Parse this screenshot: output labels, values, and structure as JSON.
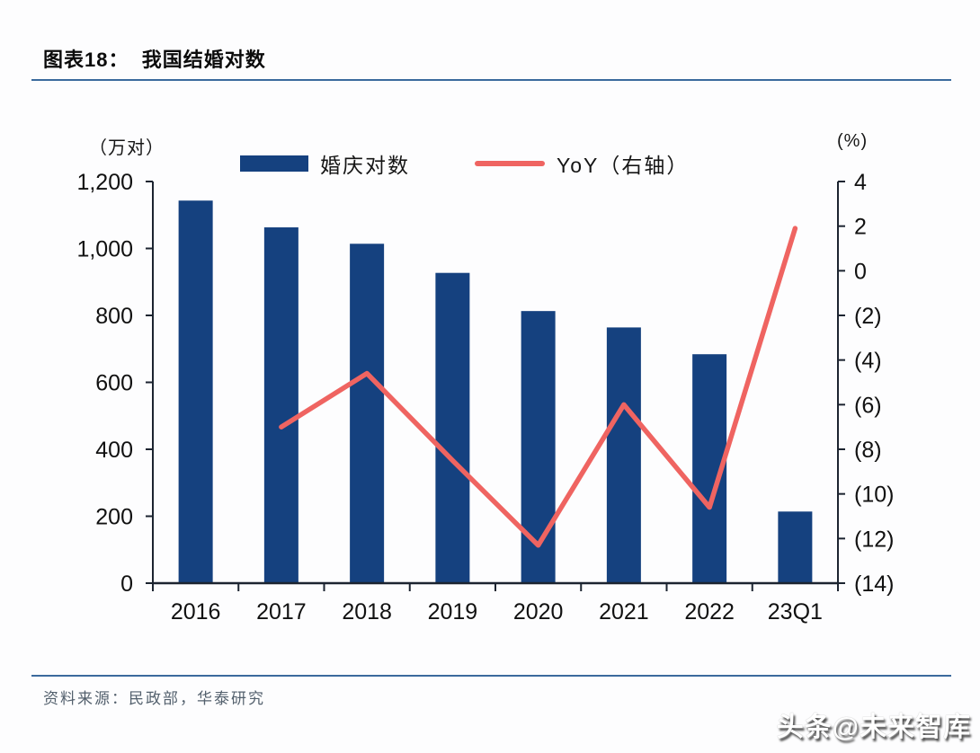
{
  "header": {
    "title": "图表18：  我国结婚对数"
  },
  "chart_data": {
    "type": "bar",
    "combo": "bar+line",
    "title": "我国结婚对数",
    "categories": [
      "2016",
      "2017",
      "2018",
      "2019",
      "2020",
      "2021",
      "2022",
      "23Q1"
    ],
    "series": [
      {
        "name": "婚庆对数",
        "type": "bar",
        "axis": "left",
        "color": "#15417f",
        "values": [
          1143,
          1063,
          1014,
          927,
          813,
          764,
          684,
          214
        ]
      },
      {
        "name": "YoY（右轴）",
        "type": "line",
        "axis": "right",
        "color": "#ef6461",
        "values": [
          null,
          -7.0,
          -4.6,
          -8.5,
          -12.3,
          -6.0,
          -10.6,
          1.9
        ]
      }
    ],
    "left_axis": {
      "unit": "（万对）",
      "min": 0,
      "max": 1200,
      "step": 200
    },
    "right_axis": {
      "unit": "(%)",
      "min": -14,
      "max": 4,
      "step": 2,
      "negative_format": "parentheses"
    },
    "legend_position": "top",
    "grid": false
  },
  "source": {
    "label": "资料来源：民政部，华泰研究"
  },
  "watermark": {
    "text": "头条@未来智库"
  },
  "colors": {
    "bar": "#15417f",
    "line": "#ef6461",
    "axis": "#1c2430",
    "tick_text": "#111111",
    "rule": "#3b6a9d",
    "source_text": "#53606d"
  }
}
